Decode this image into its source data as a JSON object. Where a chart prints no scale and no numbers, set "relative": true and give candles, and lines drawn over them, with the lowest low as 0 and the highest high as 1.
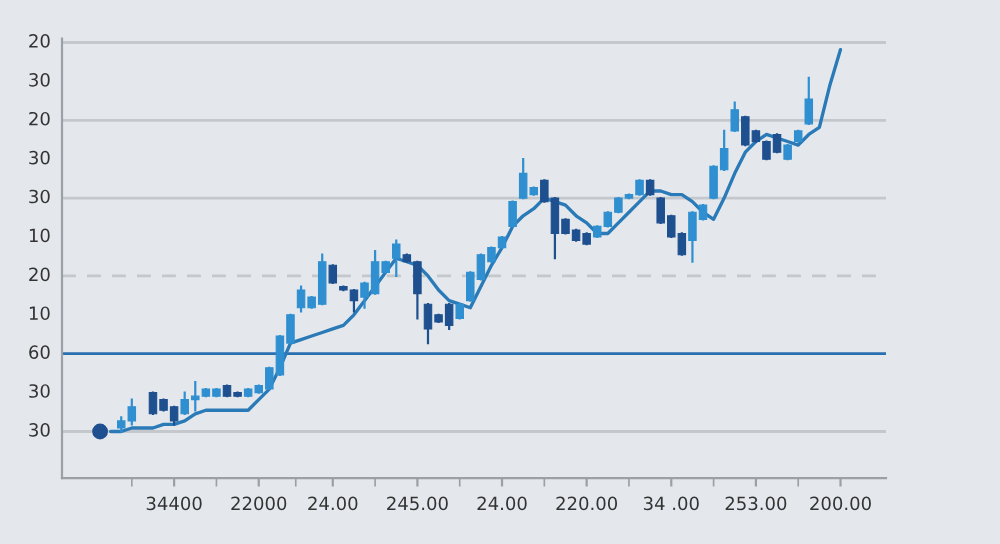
{
  "chart_data": {
    "type": "candlestick",
    "relative": true,
    "categories": [
      null,
      null,
      null,
      null,
      null,
      null,
      null,
      "34400",
      null,
      null,
      null,
      null,
      null,
      null,
      null,
      "22000",
      null,
      null,
      null,
      null,
      null,
      null,
      "24.00",
      null,
      null,
      null,
      null,
      null,
      null,
      null,
      "245.00",
      null,
      null,
      null,
      null,
      null,
      null,
      null,
      "24.00",
      null,
      null,
      null,
      null,
      null,
      null,
      null,
      "220.00",
      null,
      null,
      null,
      null,
      null,
      null,
      null,
      "34 .00",
      null,
      null,
      null,
      null,
      null,
      null,
      null,
      "253.00",
      null,
      null,
      null,
      null,
      null,
      null,
      null,
      "200.00"
    ],
    "series": [
      {
        "ohlc": [
          null,
          null,
          [
            0.01,
            0.04,
            0,
            0.03
          ],
          [
            0.03,
            0.09,
            0.02,
            0.07
          ],
          null,
          [
            0.11,
            0.11,
            0.05,
            0.05
          ],
          [
            0.09,
            0.09,
            0.06,
            0.06
          ],
          [
            0.07,
            0.07,
            0.02,
            0.03
          ],
          [
            0.05,
            0.11,
            0.05,
            0.09
          ],
          [
            0.09,
            0.14,
            0.06,
            0.1
          ],
          [
            0.1,
            0.12,
            0.1,
            0.12
          ],
          [
            0.1,
            0.12,
            0.1,
            0.12
          ],
          [
            0.13,
            0.13,
            0.1,
            0.1
          ],
          [
            0.11,
            0.11,
            0.1,
            0.1
          ],
          [
            0.1,
            0.12,
            0.1,
            0.12
          ],
          [
            0.11,
            0.13,
            0.11,
            0.13
          ],
          [
            0.12,
            0.18,
            0.12,
            0.18
          ],
          [
            0.16,
            0.27,
            0.16,
            0.27
          ],
          [
            0.25,
            0.33,
            0.25,
            0.33
          ],
          [
            0.35,
            0.41,
            0.34,
            0.4
          ],
          [
            0.35,
            0.38,
            0.35,
            0.38
          ],
          [
            0.36,
            0.5,
            0.36,
            0.48
          ],
          [
            0.47,
            0.47,
            0.42,
            0.42
          ],
          [
            0.41,
            0.41,
            0.4,
            0.4
          ],
          [
            0.4,
            0.4,
            0.34,
            0.37
          ],
          [
            0.38,
            0.42,
            0.35,
            0.42
          ],
          [
            0.39,
            0.51,
            0.39,
            0.48
          ],
          [
            0.45,
            0.48,
            0.45,
            0.48
          ],
          [
            0.49,
            0.54,
            0.44,
            0.53
          ],
          [
            0.5,
            0.5,
            0.48,
            0.48
          ],
          [
            0.48,
            0.48,
            0.32,
            0.39
          ],
          [
            0.36,
            0.36,
            0.25,
            0.29
          ],
          [
            0.33,
            0.33,
            0.31,
            0.31
          ],
          [
            0.36,
            0.36,
            0.29,
            0.3
          ],
          [
            0.32,
            0.36,
            0.32,
            0.36
          ],
          [
            0.37,
            0.45,
            0.37,
            0.45
          ],
          [
            0.43,
            0.5,
            0.43,
            0.5
          ],
          [
            0.48,
            0.52,
            0.48,
            0.52
          ],
          [
            0.52,
            0.55,
            0.52,
            0.55
          ],
          [
            0.58,
            0.65,
            0.58,
            0.65
          ],
          [
            0.66,
            0.77,
            0.66,
            0.73
          ],
          [
            0.67,
            0.69,
            0.67,
            0.69
          ],
          [
            0.71,
            0.71,
            0.65,
            0.65
          ],
          [
            0.66,
            0.66,
            0.49,
            0.56
          ],
          [
            0.6,
            0.6,
            0.56,
            0.56
          ],
          [
            0.57,
            0.57,
            0.54,
            0.54
          ],
          [
            0.56,
            0.56,
            0.53,
            0.53
          ],
          [
            0.55,
            0.58,
            0.55,
            0.58
          ],
          [
            0.58,
            0.62,
            0.58,
            0.62
          ],
          [
            0.62,
            0.66,
            0.62,
            0.66
          ],
          [
            0.66,
            0.67,
            0.66,
            0.67
          ],
          [
            0.67,
            0.71,
            0.67,
            0.71
          ],
          [
            0.71,
            0.71,
            0.67,
            0.67
          ],
          [
            0.66,
            0.66,
            0.59,
            0.59
          ],
          [
            0.61,
            0.61,
            0.55,
            0.55
          ],
          [
            0.56,
            0.56,
            0.5,
            0.5
          ],
          [
            0.54,
            0.62,
            0.48,
            0.62
          ],
          [
            0.6,
            0.64,
            0.6,
            0.64
          ],
          [
            0.66,
            0.75,
            0.66,
            0.75
          ],
          [
            0.74,
            0.85,
            0.74,
            0.8
          ],
          [
            0.85,
            0.93,
            0.85,
            0.91
          ],
          [
            0.89,
            0.89,
            0.81,
            0.81
          ],
          [
            0.85,
            0.85,
            0.82,
            0.82
          ],
          [
            0.82,
            0.82,
            0.77,
            0.77
          ],
          [
            0.84,
            0.84,
            0.79,
            0.79
          ],
          [
            0.77,
            0.81,
            0.77,
            0.81
          ],
          [
            0.82,
            0.85,
            0.82,
            0.85
          ],
          [
            0.87,
            1,
            0.87,
            0.94
          ],
          null,
          null,
          null
        ],
        "colors": [
          null,
          null,
          "#2f8fd0",
          "#2f8fd0",
          null,
          "#1e4f8f",
          "#1e4f8f",
          "#1e4f8f",
          "#2f8fd0",
          "#2f8fd0",
          "#2f8fd0",
          "#2f8fd0",
          "#1e4f8f",
          "#1e4f8f",
          "#2f8fd0",
          "#2f8fd0",
          "#2f8fd0",
          "#2f8fd0",
          "#2f8fd0",
          "#2f8fd0",
          "#2f8fd0",
          "#2f8fd0",
          "#1e4f8f",
          "#1e4f8f",
          "#1e4f8f",
          "#2f8fd0",
          "#2f8fd0",
          "#2f8fd0",
          "#2f8fd0",
          "#1e4f8f",
          "#1e4f8f",
          "#1e4f8f",
          "#1e4f8f",
          "#1e4f8f",
          "#2f8fd0",
          "#2f8fd0",
          "#2f8fd0",
          "#2f8fd0",
          "#2f8fd0",
          "#2f8fd0",
          "#2f8fd0",
          "#2f8fd0",
          "#1e4f8f",
          "#1e4f8f",
          "#1e4f8f",
          "#1e4f8f",
          "#1e4f8f",
          "#2f8fd0",
          "#2f8fd0",
          "#2f8fd0",
          "#2f8fd0",
          "#2f8fd0",
          "#1e4f8f",
          "#1e4f8f",
          "#1e4f8f",
          "#1e4f8f",
          "#2f8fd0",
          "#2f8fd0",
          "#2f8fd0",
          "#2f8fd0",
          "#2f8fd0",
          "#1e4f8f",
          "#1e4f8f",
          "#1e4f8f",
          "#1e4f8f",
          "#2f8fd0",
          "#2f8fd0",
          "#2f8fd0",
          null,
          null,
          null
        ]
      },
      {
        "type": "line",
        "color": "#2a7ab8",
        "values": [
          null,
          0.0,
          0.0,
          0.01,
          0.01,
          0.01,
          0.02,
          0.02,
          0.03,
          0.05,
          0.06,
          0.06,
          0.06,
          0.06,
          0.06,
          0.09,
          0.12,
          0.18,
          0.25,
          0.26,
          0.27,
          0.28,
          0.29,
          0.3,
          0.33,
          0.37,
          0.41,
          0.45,
          0.49,
          0.48,
          0.47,
          0.44,
          0.4,
          0.37,
          0.36,
          0.35,
          0.41,
          0.47,
          0.52,
          0.58,
          0.61,
          0.63,
          0.66,
          0.65,
          0.64,
          0.61,
          0.59,
          0.56,
          0.56,
          0.59,
          0.62,
          0.65,
          0.68,
          0.68,
          0.67,
          0.67,
          0.65,
          0.62,
          0.6,
          0.66,
          0.73,
          0.79,
          0.82,
          0.84,
          0.83,
          0.82,
          0.81,
          0.84,
          0.86,
          0.98,
          1.08
        ]
      },
      {
        "type": "scatter",
        "color": "#1e4f8f",
        "values": [
          0,
          null,
          null,
          null,
          null,
          null,
          null,
          null,
          null,
          null,
          null,
          null,
          null,
          null,
          null,
          null,
          null,
          null,
          null,
          null,
          null,
          null,
          null,
          null,
          null,
          null,
          null,
          null,
          null,
          null,
          null,
          null,
          null,
          null,
          null,
          null,
          null,
          null,
          null,
          null,
          null,
          null,
          null,
          null,
          null,
          null,
          null,
          null,
          null,
          null,
          null,
          null,
          null,
          null,
          null,
          null,
          null,
          null,
          null,
          null,
          null,
          null,
          null,
          null,
          null,
          null,
          null,
          null,
          null,
          null,
          null
        ]
      }
    ],
    "annotations": [
      "20",
      "30",
      "20",
      "30",
      "30",
      "10",
      "20",
      "10",
      "60",
      "30",
      "30"
    ],
    "ref_lines": [
      {
        "axis": "y",
        "value": 0,
        "color": "#c4c8cc"
      },
      {
        "axis": "y",
        "value": 0.22,
        "color": "#2a6fb0"
      },
      {
        "axis": "y",
        "value": 0.44,
        "color": "#c4c8cc",
        "line_style": "dashed"
      },
      {
        "axis": "y",
        "value": 0.66,
        "color": "#c4c8cc"
      },
      {
        "axis": "y",
        "value": 0.88,
        "color": "#c4c8cc"
      },
      {
        "axis": "y",
        "value": 1.1,
        "color": "#c4c8cc"
      }
    ]
  }
}
